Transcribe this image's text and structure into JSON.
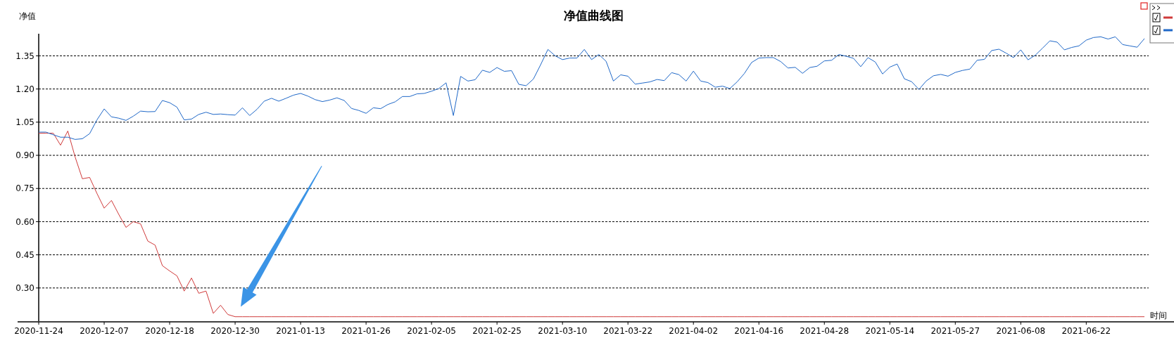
{
  "chart_data": {
    "type": "line",
    "title": "净值曲线图",
    "xlabel": "时间",
    "ylabel": "净值",
    "categories": [
      "2020-11-24",
      null,
      null,
      null,
      null,
      null,
      null,
      null,
      null,
      "2020-12-07",
      null,
      null,
      null,
      null,
      null,
      null,
      null,
      null,
      "2020-12-18",
      null,
      null,
      null,
      null,
      null,
      null,
      null,
      null,
      "2020-12-30",
      null,
      null,
      null,
      null,
      null,
      null,
      null,
      null,
      "2021-01-13",
      null,
      null,
      null,
      null,
      null,
      null,
      null,
      null,
      "2021-01-26",
      null,
      null,
      null,
      null,
      null,
      null,
      null,
      null,
      "2021-02-05",
      null,
      null,
      null,
      null,
      null,
      null,
      null,
      null,
      "2021-02-25",
      null,
      null,
      null,
      null,
      null,
      null,
      null,
      null,
      "2021-03-10",
      null,
      null,
      null,
      null,
      null,
      null,
      null,
      null,
      "2021-03-22",
      null,
      null,
      null,
      null,
      null,
      null,
      null,
      null,
      "2021-04-02",
      null,
      null,
      null,
      null,
      null,
      null,
      null,
      null,
      "2021-04-16",
      null,
      null,
      null,
      null,
      null,
      null,
      null,
      null,
      "2021-04-28",
      null,
      null,
      null,
      null,
      null,
      null,
      null,
      null,
      "2021-05-14",
      null,
      null,
      null,
      null,
      null,
      null,
      null,
      null,
      "2021-05-27",
      null,
      null,
      null,
      null,
      null,
      null,
      null,
      null,
      "2021-06-08",
      null,
      null,
      null,
      null,
      null,
      null,
      null,
      null,
      "2021-06-22",
      null,
      null,
      null,
      null,
      null,
      null,
      null,
      null
    ],
    "series": [
      {
        "color": "#d03a3a",
        "values": [
          1.0,
          1.0,
          1.0,
          0.946,
          1.01,
          0.893,
          0.794,
          0.8,
          0.728,
          0.661,
          0.696,
          0.633,
          0.574,
          0.6,
          0.59,
          0.512,
          0.494,
          0.401,
          0.377,
          0.355,
          0.286,
          0.345,
          0.276,
          0.286,
          0.185,
          0.222,
          0.18,
          0.17,
          0.17,
          0.17,
          0.17,
          0.17,
          0.17,
          0.17,
          0.17,
          0.17,
          0.17,
          0.17,
          0.17,
          0.17,
          0.17,
          0.17,
          0.17,
          0.17,
          0.17,
          0.17,
          0.17,
          0.17,
          0.17,
          0.17,
          0.17,
          0.17,
          0.17,
          0.17,
          0.17,
          0.17,
          0.17,
          0.17,
          0.17,
          0.17,
          0.17,
          0.17,
          0.17,
          0.17,
          0.17,
          0.17,
          0.17,
          0.17,
          0.17,
          0.17,
          0.17,
          0.17,
          0.17,
          0.17,
          0.17,
          0.17,
          0.17,
          0.17,
          0.17,
          0.17,
          0.17,
          0.17,
          0.17,
          0.17,
          0.17,
          0.17,
          0.17,
          0.17,
          0.17,
          0.17,
          0.17,
          0.17,
          0.17,
          0.17,
          0.17,
          0.17,
          0.17,
          0.17,
          0.17,
          0.17,
          0.17,
          0.17,
          0.17,
          0.17,
          0.17,
          0.17,
          0.17,
          0.17,
          0.17,
          0.17,
          0.17,
          0.17,
          0.17,
          0.17,
          0.17,
          0.17,
          0.17,
          0.17,
          0.17,
          0.17,
          0.17,
          0.17,
          0.17,
          0.17,
          0.17,
          0.17,
          0.17,
          0.17,
          0.17,
          0.17,
          0.17,
          0.17,
          0.17,
          0.17,
          0.17,
          0.17,
          0.17,
          0.17,
          0.17,
          0.17,
          0.17,
          0.17,
          0.17,
          0.17,
          0.17,
          0.17,
          0.17,
          0.17,
          0.17,
          0.17,
          0.17,
          0.17,
          0.17
        ]
      },
      {
        "color": "#1f68c8",
        "values": [
          1.005,
          1.005,
          0.993,
          0.982,
          0.982,
          0.972,
          0.975,
          0.998,
          1.06,
          1.11,
          1.074,
          1.068,
          1.058,
          1.077,
          1.1,
          1.097,
          1.098,
          1.148,
          1.138,
          1.118,
          1.06,
          1.064,
          1.085,
          1.095,
          1.085,
          1.087,
          1.084,
          1.082,
          1.115,
          1.08,
          1.108,
          1.145,
          1.158,
          1.145,
          1.158,
          1.172,
          1.18,
          1.168,
          1.152,
          1.143,
          1.15,
          1.16,
          1.148,
          1.112,
          1.103,
          1.09,
          1.115,
          1.111,
          1.13,
          1.142,
          1.166,
          1.166,
          1.178,
          1.18,
          1.19,
          1.202,
          1.228,
          1.08,
          1.257,
          1.236,
          1.242,
          1.285,
          1.275,
          1.297,
          1.28,
          1.283,
          1.221,
          1.215,
          1.245,
          1.31,
          1.379,
          1.35,
          1.333,
          1.34,
          1.34,
          1.379,
          1.333,
          1.356,
          1.325,
          1.236,
          1.264,
          1.258,
          1.222,
          1.227,
          1.232,
          1.243,
          1.238,
          1.274,
          1.265,
          1.236,
          1.281,
          1.236,
          1.229,
          1.208,
          1.213,
          1.202,
          1.232,
          1.27,
          1.32,
          1.34,
          1.342,
          1.342,
          1.324,
          1.295,
          1.298,
          1.271,
          1.297,
          1.303,
          1.327,
          1.33,
          1.356,
          1.348,
          1.339,
          1.301,
          1.342,
          1.322,
          1.268,
          1.299,
          1.313,
          1.246,
          1.233,
          1.198,
          1.236,
          1.26,
          1.266,
          1.258,
          1.275,
          1.284,
          1.29,
          1.33,
          1.334,
          1.374,
          1.38,
          1.362,
          1.342,
          1.377,
          1.332,
          1.353,
          1.385,
          1.418,
          1.412,
          1.377,
          1.388,
          1.395,
          1.421,
          1.433,
          1.436,
          1.426,
          1.436,
          1.401,
          1.395,
          1.389,
          1.428
        ]
      }
    ],
    "ylim": [
      0.15,
      1.45
    ],
    "yticks": [
      {
        "value": 0.3,
        "label": "0.30"
      },
      {
        "value": 0.45,
        "label": "0.45"
      },
      {
        "value": 0.6,
        "label": "0.60"
      },
      {
        "value": 0.75,
        "label": "0.75"
      },
      {
        "value": 0.9,
        "label": "0.90"
      },
      {
        "value": 1.05,
        "label": "1.05"
      },
      {
        "value": 1.2,
        "label": "1.20"
      },
      {
        "value": 1.35,
        "label": "1.35"
      }
    ],
    "grid": "y",
    "line_style": "solid"
  }
}
